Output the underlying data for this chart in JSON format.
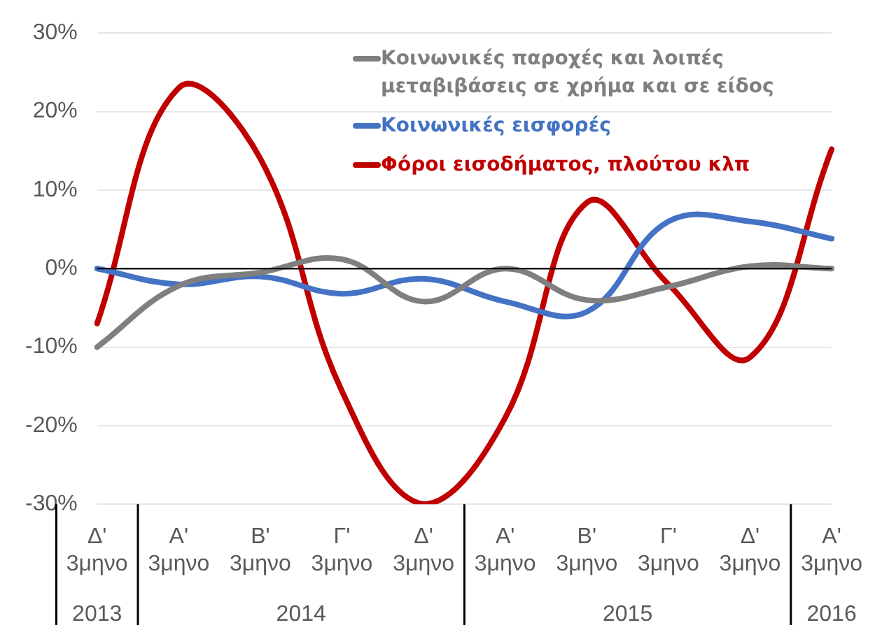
{
  "chart_data": {
    "type": "line",
    "categories": [
      "Δ'\n3μηνο",
      "Α'\n3μηνο",
      "Β'\n3μηνο",
      "Γ'\n3μηνο",
      "Δ'\n3μηνο",
      "Α'\n3μηνο",
      "Β'\n3μηνο",
      "Γ'\n3μηνο",
      "Δ'\n3μηνο",
      "Α'\n3μηνο"
    ],
    "series": [
      {
        "name": "Κοινωνικές παροχές και λοιπές μεταβιβάσεις σε χρήμα και σε είδος",
        "color": "#7f7f7f",
        "values": [
          -10,
          -2.2,
          -0.5,
          1.2,
          -4.2,
          0,
          -4,
          -2.3,
          0.3,
          0
        ]
      },
      {
        "name": "Κοινωνικές εισφορές",
        "color": "#4472c4",
        "values": [
          0,
          -2,
          -1,
          -3.2,
          -1.3,
          -4.2,
          -5.5,
          6,
          6,
          3.8
        ]
      },
      {
        "name": "Φόροι εισοδήματος, πλούτου κλπ",
        "color": "#c00000",
        "values": [
          -7,
          23,
          14,
          -15.6,
          -30,
          -19,
          8.4,
          -2,
          -11.3,
          15.2
        ]
      }
    ],
    "ylim": [
      -30,
      30
    ],
    "yticks": [
      {
        "value": -30,
        "label": "-30%"
      },
      {
        "value": -20,
        "label": "-20%"
      },
      {
        "value": -10,
        "label": "-10%"
      },
      {
        "value": 0,
        "label": "0%"
      },
      {
        "value": 10,
        "label": "10%"
      },
      {
        "value": 20,
        "label": "20%"
      },
      {
        "value": 30,
        "label": "30%"
      }
    ],
    "annotations": [
      "2013",
      "2014",
      "2015",
      "2016"
    ],
    "grid": "y",
    "legend": "top right",
    "marker": "none",
    "line_style": "solid"
  }
}
